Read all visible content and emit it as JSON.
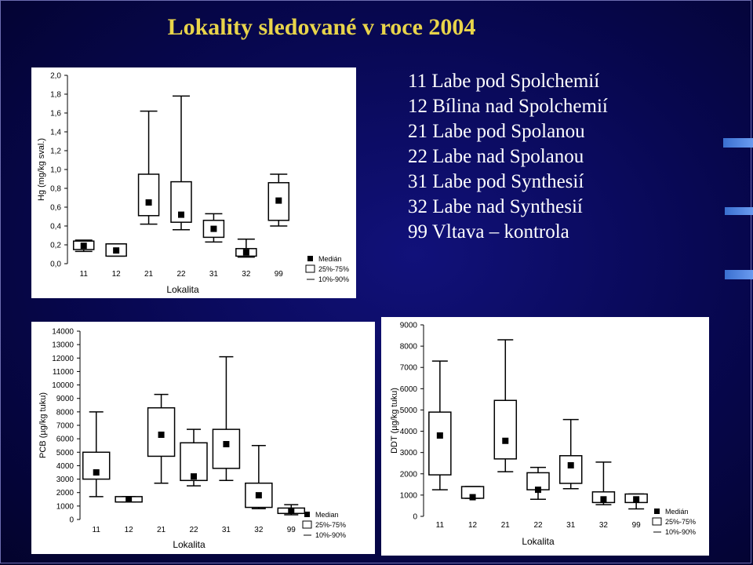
{
  "title": "Lokality sledované v roce 2004",
  "legend_items": [
    {
      "code": "11",
      "name": "Labe pod Spolchemií"
    },
    {
      "code": "12",
      "name": "Bílina nad Spolchemií"
    },
    {
      "code": "21",
      "name": "Labe pod Spolanou"
    },
    {
      "code": "22",
      "name": "Labe nad Spolanou"
    },
    {
      "code": "31",
      "name": "Labe pod Synthesií"
    },
    {
      "code": "32",
      "name": "Labe nad Synthesií"
    },
    {
      "code": "99",
      "name": "Vltava – kontrola"
    }
  ],
  "chart_data": [
    {
      "type": "box",
      "ylabel": "Hg (mg/kg sval.)",
      "xlabel": "Lokalita",
      "ylim": [
        0,
        2
      ],
      "yticks": [
        0,
        0.2,
        0.4,
        0.6,
        0.8,
        1.0,
        1.2,
        1.4,
        1.6,
        1.8,
        2.0
      ],
      "ytick_labels": [
        "0,0",
        "0,2",
        "0,4",
        "0,6",
        "0,8",
        "1,0",
        "1,2",
        "1,4",
        "1,6",
        "1,8",
        "2,0"
      ],
      "categories": [
        "11",
        "12",
        "21",
        "22",
        "31",
        "32",
        "99"
      ],
      "boxes": [
        {
          "p10": 0.13,
          "q1": 0.15,
          "median": 0.19,
          "q3": 0.24,
          "p90": 0.25
        },
        {
          "p10": 0.08,
          "q1": 0.08,
          "median": 0.14,
          "q3": 0.21,
          "p90": 0.21
        },
        {
          "p10": 0.42,
          "q1": 0.51,
          "median": 0.65,
          "q3": 0.95,
          "p90": 1.62
        },
        {
          "p10": 0.36,
          "q1": 0.44,
          "median": 0.52,
          "q3": 0.87,
          "p90": 1.78
        },
        {
          "p10": 0.23,
          "q1": 0.28,
          "median": 0.37,
          "q3": 0.46,
          "p90": 0.53
        },
        {
          "p10": 0.07,
          "q1": 0.08,
          "median": 0.12,
          "q3": 0.16,
          "p90": 0.26
        },
        {
          "p10": 0.4,
          "q1": 0.46,
          "median": 0.67,
          "q3": 0.86,
          "p90": 0.95
        }
      ],
      "legend": [
        "Medián",
        "25%-75%",
        "10%-90%"
      ]
    },
    {
      "type": "box",
      "ylabel": "PCB (µg/kg tuku)",
      "xlabel": "Lokalita",
      "ylim": [
        0,
        14000
      ],
      "yticks": [
        0,
        1000,
        2000,
        3000,
        4000,
        5000,
        6000,
        7000,
        8000,
        9000,
        10000,
        11000,
        12000,
        13000,
        14000
      ],
      "ytick_labels": [
        "0",
        "1000",
        "2000",
        "3000",
        "4000",
        "5000",
        "6000",
        "7000",
        "8000",
        "9000",
        "10000",
        "11000",
        "12000",
        "13000",
        "14000"
      ],
      "categories": [
        "11",
        "12",
        "21",
        "22",
        "31",
        "32",
        "99"
      ],
      "boxes": [
        {
          "p10": 1700,
          "q1": 3000,
          "median": 3500,
          "q3": 5000,
          "p90": 8000
        },
        {
          "p10": 1300,
          "q1": 1300,
          "median": 1500,
          "q3": 1700,
          "p90": 1700
        },
        {
          "p10": 2700,
          "q1": 4700,
          "median": 6300,
          "q3": 8300,
          "p90": 9300
        },
        {
          "p10": 2500,
          "q1": 2900,
          "median": 3200,
          "q3": 5700,
          "p90": 6700
        },
        {
          "p10": 2900,
          "q1": 3800,
          "median": 5600,
          "q3": 6700,
          "p90": 12100
        },
        {
          "p10": 800,
          "q1": 900,
          "median": 1800,
          "q3": 2700,
          "p90": 5500
        },
        {
          "p10": 350,
          "q1": 450,
          "median": 650,
          "q3": 850,
          "p90": 1100
        }
      ],
      "legend": [
        "Median",
        "25%-75%",
        "10%-90%"
      ]
    },
    {
      "type": "box",
      "ylabel": "DDT (µg/kg tuku)",
      "xlabel": "Lokalita",
      "ylim": [
        0,
        9000
      ],
      "yticks": [
        0,
        1000,
        2000,
        3000,
        4000,
        5000,
        6000,
        7000,
        8000,
        9000
      ],
      "ytick_labels": [
        "0",
        "1000",
        "2000",
        "3000",
        "4000",
        "5000",
        "6000",
        "7000",
        "8000",
        "9000"
      ],
      "categories": [
        "11",
        "12",
        "21",
        "22",
        "31",
        "32",
        "99"
      ],
      "boxes": [
        {
          "p10": 1250,
          "q1": 1950,
          "median": 3800,
          "q3": 4900,
          "p90": 7300
        },
        {
          "p10": 850,
          "q1": 850,
          "median": 900,
          "q3": 1400,
          "p90": 1400
        },
        {
          "p10": 2100,
          "q1": 2700,
          "median": 3550,
          "q3": 5450,
          "p90": 8300
        },
        {
          "p10": 800,
          "q1": 1250,
          "median": 1250,
          "q3": 2050,
          "p90": 2300
        },
        {
          "p10": 1300,
          "q1": 1550,
          "median": 2400,
          "q3": 2850,
          "p90": 4550
        },
        {
          "p10": 550,
          "q1": 650,
          "median": 800,
          "q3": 1150,
          "p90": 2550
        },
        {
          "p10": 350,
          "q1": 650,
          "median": 800,
          "q3": 1050,
          "p90": 1050
        }
      ],
      "legend": [
        "Medián",
        "25%-75%",
        "10%-90%"
      ]
    }
  ]
}
